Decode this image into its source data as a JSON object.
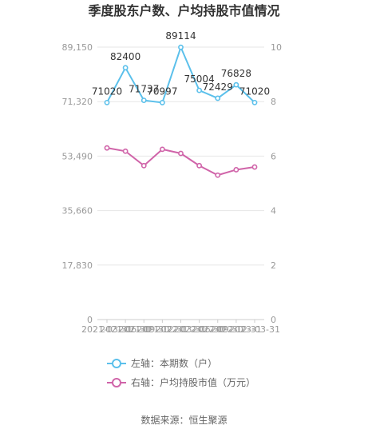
{
  "chart_data": {
    "type": "line",
    "title": "季度股东户数、户均持股市值情况",
    "categories": [
      "2021-03-31",
      "2021-06-30",
      "2021-09-30",
      "2021-12-31",
      "2022-03-31",
      "2022-06-30",
      "2022-09-30",
      "2022-12-31",
      "2023-03-31"
    ],
    "left_axis": {
      "ticks": [
        "0",
        "17,830",
        "35,660",
        "53,490",
        "71,320",
        "89,150"
      ],
      "ylim": [
        0,
        89150
      ]
    },
    "right_axis": {
      "ticks": [
        "0",
        "2",
        "4",
        "6",
        "8",
        "10"
      ],
      "ylim": [
        0,
        10
      ]
    },
    "series": [
      {
        "name": "左轴：本期数（户）",
        "axis": "left",
        "color": "#5bc0eb",
        "values": [
          71020,
          82400,
          71737,
          70997,
          89114,
          75004,
          72429,
          76828,
          71020
        ],
        "labels": [
          "71020",
          "82400",
          "71737",
          "70997",
          "89114",
          "75004",
          "72429",
          "76828",
          "71020"
        ]
      },
      {
        "name": "右轴：户均持股市值（万元）",
        "axis": "right",
        "color": "#d064a9",
        "values": [
          6.3,
          6.18,
          5.65,
          6.25,
          6.1,
          5.65,
          5.3,
          5.5,
          5.6
        ]
      }
    ],
    "legend": "bottom",
    "grid": true
  },
  "source": "数据来源：恒生聚源"
}
